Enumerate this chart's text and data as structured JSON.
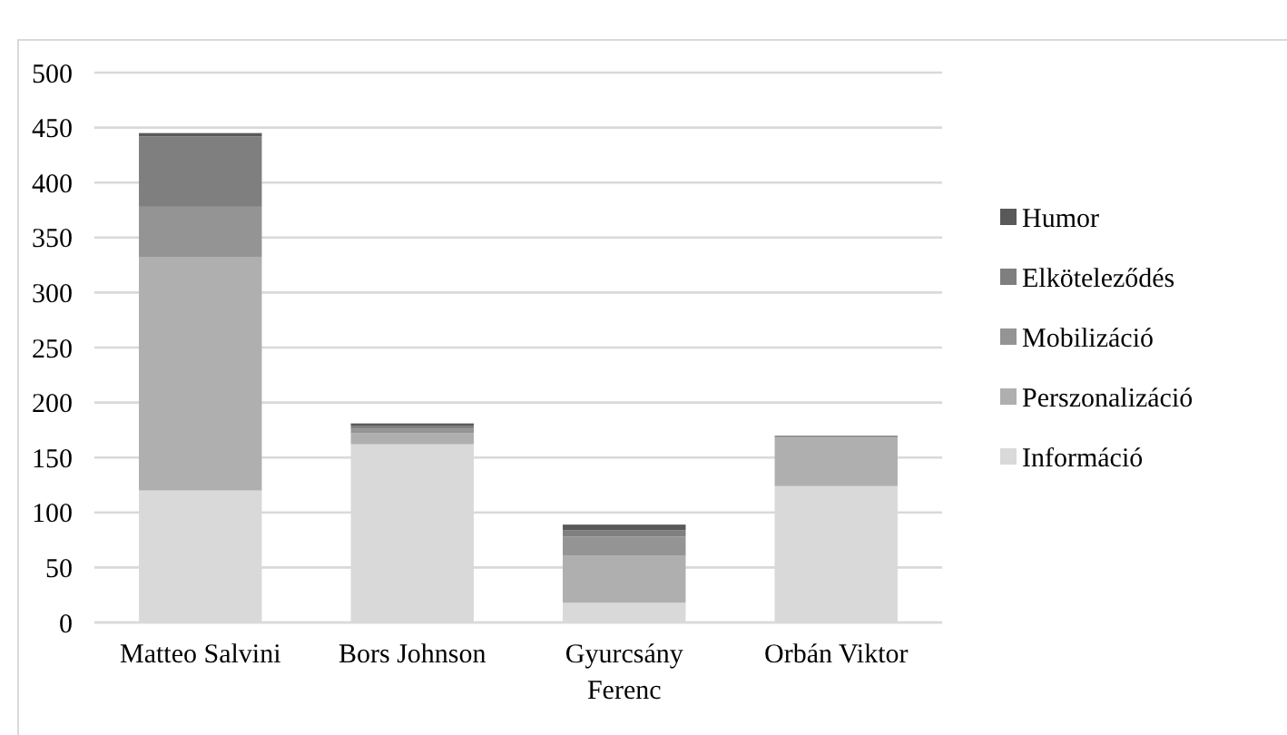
{
  "chart_data": {
    "type": "bar",
    "stacked": true,
    "categories": [
      "Matteo Salvini",
      "Bors Johnson",
      "Gyurcsány Ferenc",
      "Orbán Viktor"
    ],
    "series": [
      {
        "name": "Információ",
        "color": "#d9d9d9",
        "values": [
          120,
          162,
          18,
          124
        ]
      },
      {
        "name": "Perszonalizáció",
        "color": "#afafaf",
        "values": [
          212,
          10,
          43,
          44
        ]
      },
      {
        "name": "Mobilizáció",
        "color": "#949494",
        "values": [
          46,
          4,
          17,
          2
        ]
      },
      {
        "name": "Elköteleződés",
        "color": "#7f7f7f",
        "values": [
          64,
          3,
          6,
          0
        ]
      },
      {
        "name": "Humor",
        "color": "#595959",
        "values": [
          3,
          2,
          5,
          0
        ]
      }
    ],
    "ylim": [
      0,
      500
    ],
    "yticks": [
      0,
      50,
      100,
      150,
      200,
      250,
      300,
      350,
      400,
      450,
      500
    ],
    "grid": "y",
    "legend": "right"
  }
}
